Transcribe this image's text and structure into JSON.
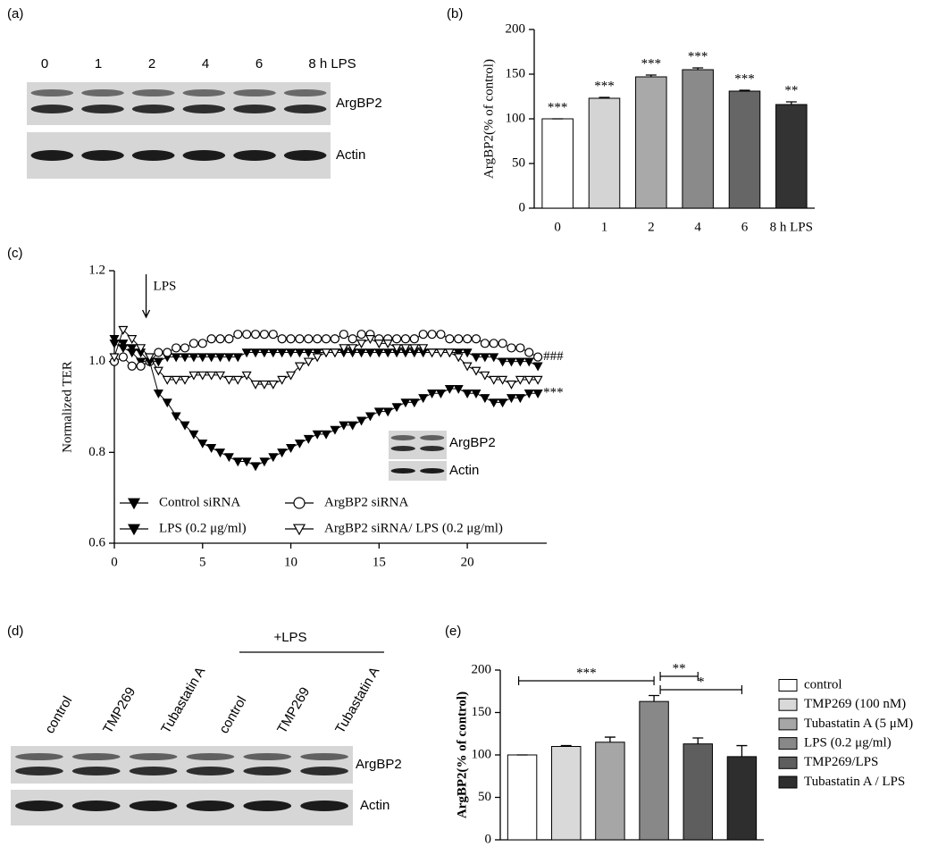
{
  "panel_labels": [
    "(a)",
    "(b)",
    "(c)",
    "(d)",
    "(e)"
  ],
  "blot_a": {
    "lanes": [
      "0",
      "1",
      "2",
      "4",
      "6",
      "8 h LPS"
    ],
    "bands": [
      "ArgBP2",
      "Actin"
    ]
  },
  "blot_c_inset": {
    "bands": [
      "ArgBP2",
      "Actin"
    ]
  },
  "blot_d": {
    "lanes": [
      "control",
      "TMP269",
      "Tubastatin A",
      "control",
      "TMP269",
      "Tubastatin A"
    ],
    "treatment": "+LPS",
    "bands": [
      "ArgBP2",
      "Actin"
    ]
  },
  "chart_data": [
    {
      "type": "bar",
      "categories": [
        "0",
        "1",
        "2",
        "4",
        "6",
        "8 h LPS"
      ],
      "values": [
        100,
        123,
        147,
        155,
        131,
        116
      ],
      "errors": [
        0,
        1,
        2,
        2,
        1,
        3
      ],
      "colors": [
        "#ffffff",
        "#d4d4d4",
        "#a9a9a9",
        "#8a8a8a",
        "#666666",
        "#333333"
      ],
      "annotations": [
        "***",
        "***",
        "***",
        "***",
        "***",
        "**"
      ],
      "ylabel": "ArgBP2(% of control)",
      "ylim": [
        0,
        200
      ],
      "yticks": [
        0,
        50,
        100,
        150,
        200
      ]
    },
    {
      "type": "line",
      "x": [
        0,
        0.5,
        1,
        1.5,
        2,
        2.5,
        3,
        3.5,
        4,
        4.5,
        5,
        5.5,
        6,
        6.5,
        7,
        7.5,
        8,
        8.5,
        9,
        9.5,
        10,
        10.5,
        11,
        11.5,
        12,
        12.5,
        13,
        13.5,
        14,
        14.5,
        15,
        15.5,
        16,
        16.5,
        17,
        17.5,
        18,
        18.5,
        19,
        19.5,
        20,
        20.5,
        21,
        21.5,
        22,
        22.5,
        23,
        23.5,
        24
      ],
      "series": [
        {
          "name": "Control siRNA",
          "color": "#000000",
          "marker": "triangle-down",
          "fill": "#000000",
          "values": [
            1.04,
            1.03,
            1.02,
            1.0,
            1.0,
            1.0,
            1.01,
            1.01,
            1.01,
            1.01,
            1.01,
            1.01,
            1.01,
            1.01,
            1.01,
            1.02,
            1.02,
            1.02,
            1.02,
            1.02,
            1.02,
            1.02,
            1.02,
            1.02,
            1.02,
            1.02,
            1.02,
            1.02,
            1.02,
            1.02,
            1.02,
            1.02,
            1.02,
            1.02,
            1.02,
            1.02,
            1.02,
            1.02,
            1.02,
            1.02,
            1.02,
            1.01,
            1.01,
            1.01,
            1.0,
            1.0,
            1.0,
            1.0,
            0.99
          ]
        },
        {
          "name": "ArgBP2 siRNA",
          "color": "#000000",
          "marker": "circle",
          "fill": "#ffffff",
          "end_label": "###",
          "values": [
            1.0,
            1.01,
            0.99,
            0.99,
            1.0,
            1.02,
            1.02,
            1.03,
            1.03,
            1.04,
            1.04,
            1.05,
            1.05,
            1.05,
            1.06,
            1.06,
            1.06,
            1.06,
            1.06,
            1.05,
            1.05,
            1.05,
            1.05,
            1.05,
            1.05,
            1.05,
            1.06,
            1.05,
            1.06,
            1.06,
            1.05,
            1.05,
            1.05,
            1.05,
            1.05,
            1.06,
            1.06,
            1.06,
            1.05,
            1.05,
            1.05,
            1.05,
            1.04,
            1.04,
            1.04,
            1.03,
            1.03,
            1.02,
            1.01
          ]
        },
        {
          "name": "LPS (0.2 μg/ml)",
          "color": "#000000",
          "marker": "triangle-down",
          "fill": "#000000",
          "end_label": "***",
          "values": [
            1.05,
            1.04,
            1.03,
            1.02,
            1.0,
            0.93,
            0.91,
            0.88,
            0.86,
            0.84,
            0.82,
            0.81,
            0.8,
            0.79,
            0.78,
            0.78,
            0.77,
            0.78,
            0.79,
            0.8,
            0.81,
            0.82,
            0.83,
            0.84,
            0.84,
            0.85,
            0.86,
            0.86,
            0.87,
            0.88,
            0.89,
            0.89,
            0.9,
            0.91,
            0.91,
            0.92,
            0.93,
            0.93,
            0.94,
            0.94,
            0.93,
            0.93,
            0.92,
            0.91,
            0.91,
            0.92,
            0.92,
            0.93,
            0.93
          ]
        },
        {
          "name": "ArgBP2 siRNA/ LPS (0.2 μg/ml)",
          "color": "#000000",
          "marker": "triangle-down",
          "fill": "#ffffff",
          "values": [
            1.01,
            1.07,
            1.05,
            1.03,
            1.01,
            0.98,
            0.96,
            0.96,
            0.96,
            0.97,
            0.97,
            0.97,
            0.97,
            0.96,
            0.96,
            0.97,
            0.95,
            0.95,
            0.95,
            0.96,
            0.97,
            0.99,
            1.0,
            1.01,
            1.02,
            1.02,
            1.03,
            1.03,
            1.04,
            1.05,
            1.04,
            1.04,
            1.03,
            1.03,
            1.03,
            1.03,
            1.02,
            1.02,
            1.02,
            1.01,
            0.99,
            0.98,
            0.97,
            0.96,
            0.96,
            0.95,
            0.96,
            0.96,
            0.96
          ]
        }
      ],
      "ylabel": "Normalized TER",
      "annotation": {
        "text": "LPS",
        "x": 1.8
      },
      "xlim": [
        0,
        24.5
      ],
      "xticks": [
        0,
        5,
        10,
        15,
        20
      ],
      "ylim": [
        0.6,
        1.2
      ],
      "yticks": [
        0.6,
        0.8,
        {
          "value": 1,
          "label": "1.0"
        },
        1.2
      ]
    },
    {
      "type": "bar",
      "categories": [
        "control",
        "TMP269 (100 nM)",
        "Tubastatin A (5 μM)",
        "LPS (0.2 μg/ml)",
        "TMP269/LPS",
        "Tubastatin A / LPS"
      ],
      "values": [
        100,
        110,
        115,
        163,
        113,
        98
      ],
      "errors": [
        0,
        1,
        6,
        7,
        7,
        13
      ],
      "colors": [
        "#ffffff",
        "#d9d9d9",
        "#a6a6a6",
        "#888888",
        "#5e5e5e",
        "#2e2e2e"
      ],
      "ylabel": "ArgBP2(% of control)",
      "legend": "right",
      "comparisons": [
        {
          "from": 0,
          "to": 3,
          "label": "***"
        },
        {
          "from": 3,
          "to": 4,
          "label": "**"
        },
        {
          "from": 3,
          "to": 5,
          "label": "*"
        }
      ],
      "ylim": [
        0,
        200
      ],
      "yticks": [
        0,
        50,
        100,
        150,
        200
      ]
    }
  ]
}
